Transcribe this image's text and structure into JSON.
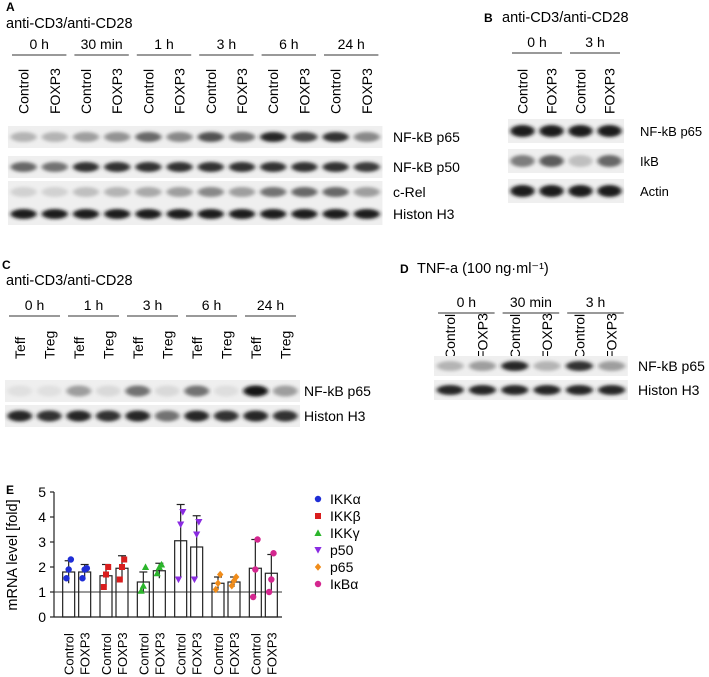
{
  "panel_A": {
    "letter": "A",
    "stimulus": "anti-CD3/anti-CD28",
    "timepoints": [
      "0 h",
      "30 min",
      "1 h",
      "3 h",
      "6 h",
      "24 h"
    ],
    "lanes": [
      "Control",
      "FOXP3",
      "Control",
      "FOXP3",
      "Control",
      "FOXP3",
      "Control",
      "FOXP3",
      "Control",
      "FOXP3",
      "Control",
      "FOXP3"
    ],
    "rows": [
      {
        "label": "NF-kB p65",
        "intensity": [
          0.25,
          0.25,
          0.35,
          0.4,
          0.6,
          0.45,
          0.7,
          0.55,
          0.9,
          0.75,
          0.85,
          0.45
        ]
      },
      {
        "label": "NF-kB p50",
        "intensity": [
          0.6,
          0.55,
          0.85,
          0.85,
          0.85,
          0.85,
          0.85,
          0.85,
          0.85,
          0.85,
          0.85,
          0.8
        ]
      },
      {
        "label": "c-Rel",
        "intensity": [
          0.12,
          0.12,
          0.2,
          0.25,
          0.3,
          0.35,
          0.45,
          0.35,
          0.55,
          0.6,
          0.6,
          0.35
        ]
      },
      {
        "label": "Histon H3",
        "intensity": [
          0.95,
          0.95,
          0.95,
          0.95,
          0.95,
          0.95,
          0.95,
          0.95,
          0.95,
          0.95,
          0.95,
          0.95
        ]
      }
    ]
  },
  "panel_B": {
    "letter": "B",
    "stimulus": "anti-CD3/anti-CD28",
    "timepoints": [
      "0 h",
      "3 h"
    ],
    "lanes": [
      "Control",
      "FOXP3",
      "Control",
      "FOXP3"
    ],
    "rows": [
      {
        "label": "NF-kB p65",
        "intensity": [
          0.95,
          0.95,
          0.95,
          0.95
        ]
      },
      {
        "label": "IkB",
        "intensity": [
          0.5,
          0.65,
          0.2,
          0.6
        ]
      },
      {
        "label": "Actin",
        "intensity": [
          0.95,
          0.95,
          0.95,
          0.95
        ]
      }
    ]
  },
  "panel_C": {
    "letter": "C",
    "stimulus": "anti-CD3/anti-CD28",
    "timepoints": [
      "0 h",
      "1 h",
      "3 h",
      "6 h",
      "24 h"
    ],
    "lanes": [
      "Teff",
      "Treg",
      "Teff",
      "Treg",
      "Teff",
      "Treg",
      "Teff",
      "Treg",
      "Teff",
      "Treg"
    ],
    "rows": [
      {
        "label": "NF-kB p65",
        "intensity": [
          0.05,
          0.05,
          0.35,
          0.08,
          0.55,
          0.08,
          0.55,
          0.06,
          0.98,
          0.35
        ]
      },
      {
        "label": "Histon H3",
        "intensity": [
          0.9,
          0.85,
          0.9,
          0.85,
          0.9,
          0.55,
          0.9,
          0.85,
          0.9,
          0.85
        ]
      }
    ]
  },
  "panel_D": {
    "letter": "D",
    "stimulus": "TNF-a (100 ng·ml⁻¹)",
    "timepoints": [
      "0 h",
      "30 min",
      "3 h"
    ],
    "lanes": [
      "Control",
      "FOXP3",
      "Control",
      "FOXP3",
      "Control",
      "FOXP3"
    ],
    "rows": [
      {
        "label": "NF-kB p65",
        "intensity": [
          0.25,
          0.35,
          0.9,
          0.25,
          0.85,
          0.35
        ]
      },
      {
        "label": "Histon H3",
        "intensity": [
          0.9,
          0.9,
          0.9,
          0.9,
          0.9,
          0.9
        ]
      }
    ]
  },
  "panel_E": {
    "letter": "E",
    "chart_data": {
      "type": "bar",
      "ylabel": "mRNA level [fold]",
      "ylim": [
        0,
        5
      ],
      "yticks": [
        0,
        1,
        2,
        3,
        4,
        5
      ],
      "reference_line": 1,
      "categories": [
        "Control",
        "FOXP3",
        "Control",
        "FOXP3",
        "Control",
        "FOXP3",
        "Control",
        "FOXP3",
        "Control",
        "FOXP3",
        "Control",
        "FOXP3"
      ],
      "values": [
        1.8,
        1.8,
        1.65,
        1.95,
        1.4,
        1.85,
        3.05,
        2.8,
        1.35,
        1.4,
        1.95,
        1.75
      ],
      "error": [
        0.45,
        0.3,
        0.45,
        0.5,
        0.4,
        0.3,
        1.45,
        1.25,
        0.25,
        0.2,
        1.15,
        0.75
      ],
      "groups": [
        "IKKα",
        "IKKβ",
        "IKKγ",
        "p50",
        "p65",
        "IκBα"
      ],
      "legend_position": "right",
      "points": [
        [
          1.55,
          1.9,
          2.3
        ],
        [
          1.55,
          1.9,
          1.95
        ],
        [
          1.2,
          1.7,
          2.0
        ],
        [
          1.5,
          2.0,
          2.3
        ],
        [
          1.05,
          1.25,
          2.0
        ],
        [
          1.75,
          2.0,
          2.1
        ],
        [
          1.5,
          3.7,
          4.2
        ],
        [
          1.5,
          3.3,
          3.8
        ],
        [
          1.1,
          1.35,
          1.7
        ],
        [
          1.25,
          1.45,
          1.6
        ],
        [
          0.8,
          1.9,
          3.1
        ],
        [
          1.0,
          1.5,
          2.55
        ]
      ],
      "series": [
        {
          "name": "IKKα",
          "color": "#1f2ed6",
          "marker": "circle"
        },
        {
          "name": "IKKβ",
          "color": "#d91e1e",
          "marker": "square"
        },
        {
          "name": "IKKγ",
          "color": "#2bb52b",
          "marker": "triangle-up"
        },
        {
          "name": "p50",
          "color": "#8a2be2",
          "marker": "triangle-down"
        },
        {
          "name": "p65",
          "color": "#f08c1a",
          "marker": "diamond"
        },
        {
          "name": "IκBα",
          "color": "#d4278f",
          "marker": "hexagon"
        }
      ]
    }
  }
}
